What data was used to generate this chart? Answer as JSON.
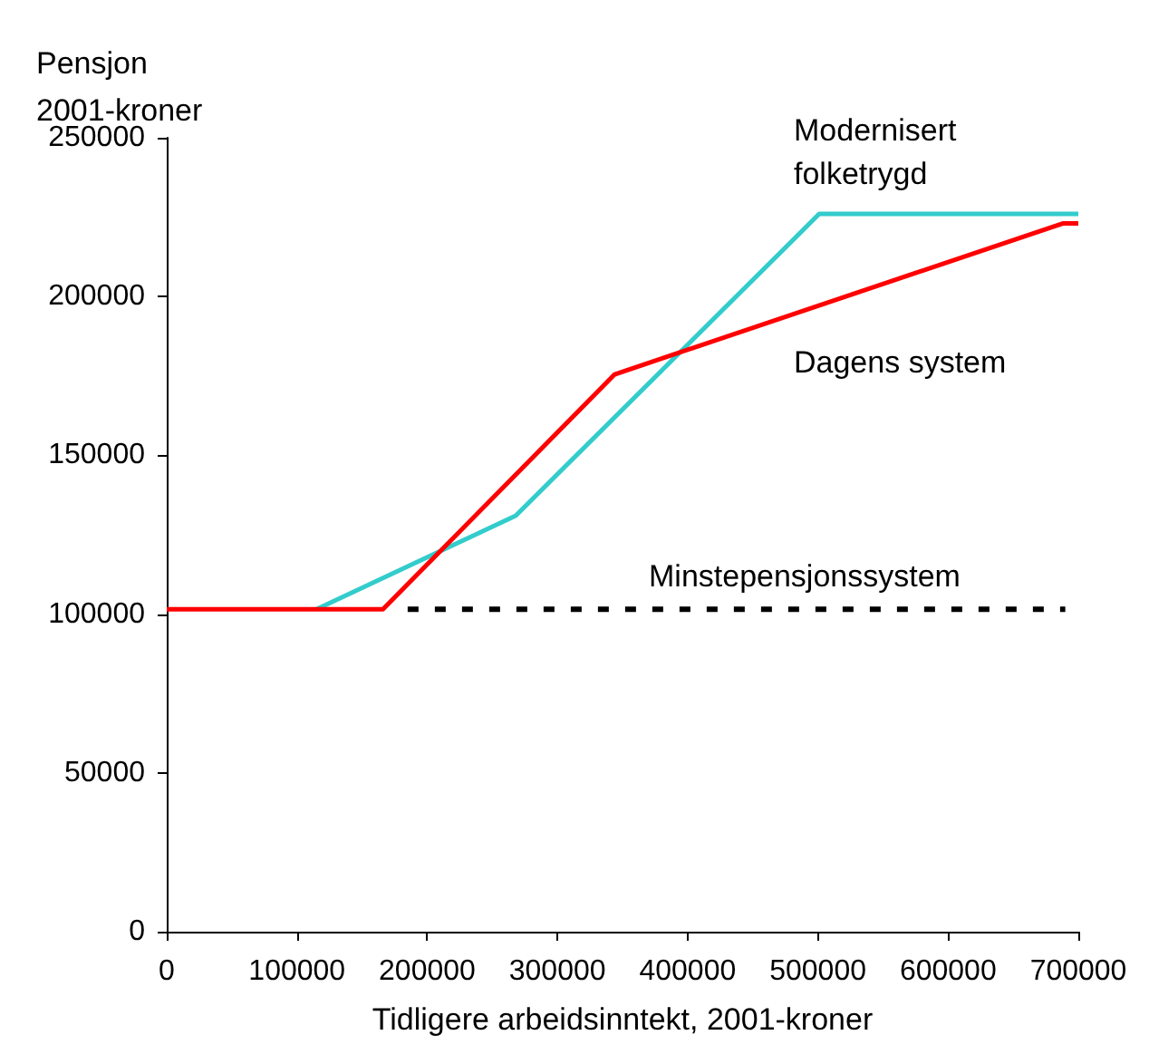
{
  "chart_data": {
    "type": "line",
    "xlabel": "Tidligere arbeidsinntekt, 2001-kroner",
    "ylabel": "Pensjon\n2001-kroner",
    "xlim": [
      0,
      700000
    ],
    "xticks": [
      0,
      100000,
      200000,
      300000,
      400000,
      500000,
      600000,
      700000
    ],
    "ylim": [
      0,
      250000
    ],
    "yticks": [
      0,
      50000,
      100000,
      150000,
      200000,
      250000
    ],
    "grid": false,
    "legend": false,
    "marker": "none",
    "series": [
      {
        "name": "Modernisert\nfolketrygd",
        "color": "#33cccc",
        "x": [
          115000,
          268000,
          501000,
          700000
        ],
        "values": [
          101500,
          131000,
          226000,
          226000
        ]
      },
      {
        "name": "Dagens system",
        "color": "#ff0000",
        "x": [
          0,
          166000,
          344000,
          688000,
          700000
        ],
        "values": [
          101500,
          101500,
          175500,
          223000,
          223000
        ]
      },
      {
        "name": "Minstepensjonssystem",
        "color": "#000000",
        "line_style": "dashed",
        "x": [
          185000,
          690000
        ],
        "values": [
          101500,
          101500
        ]
      }
    ]
  }
}
